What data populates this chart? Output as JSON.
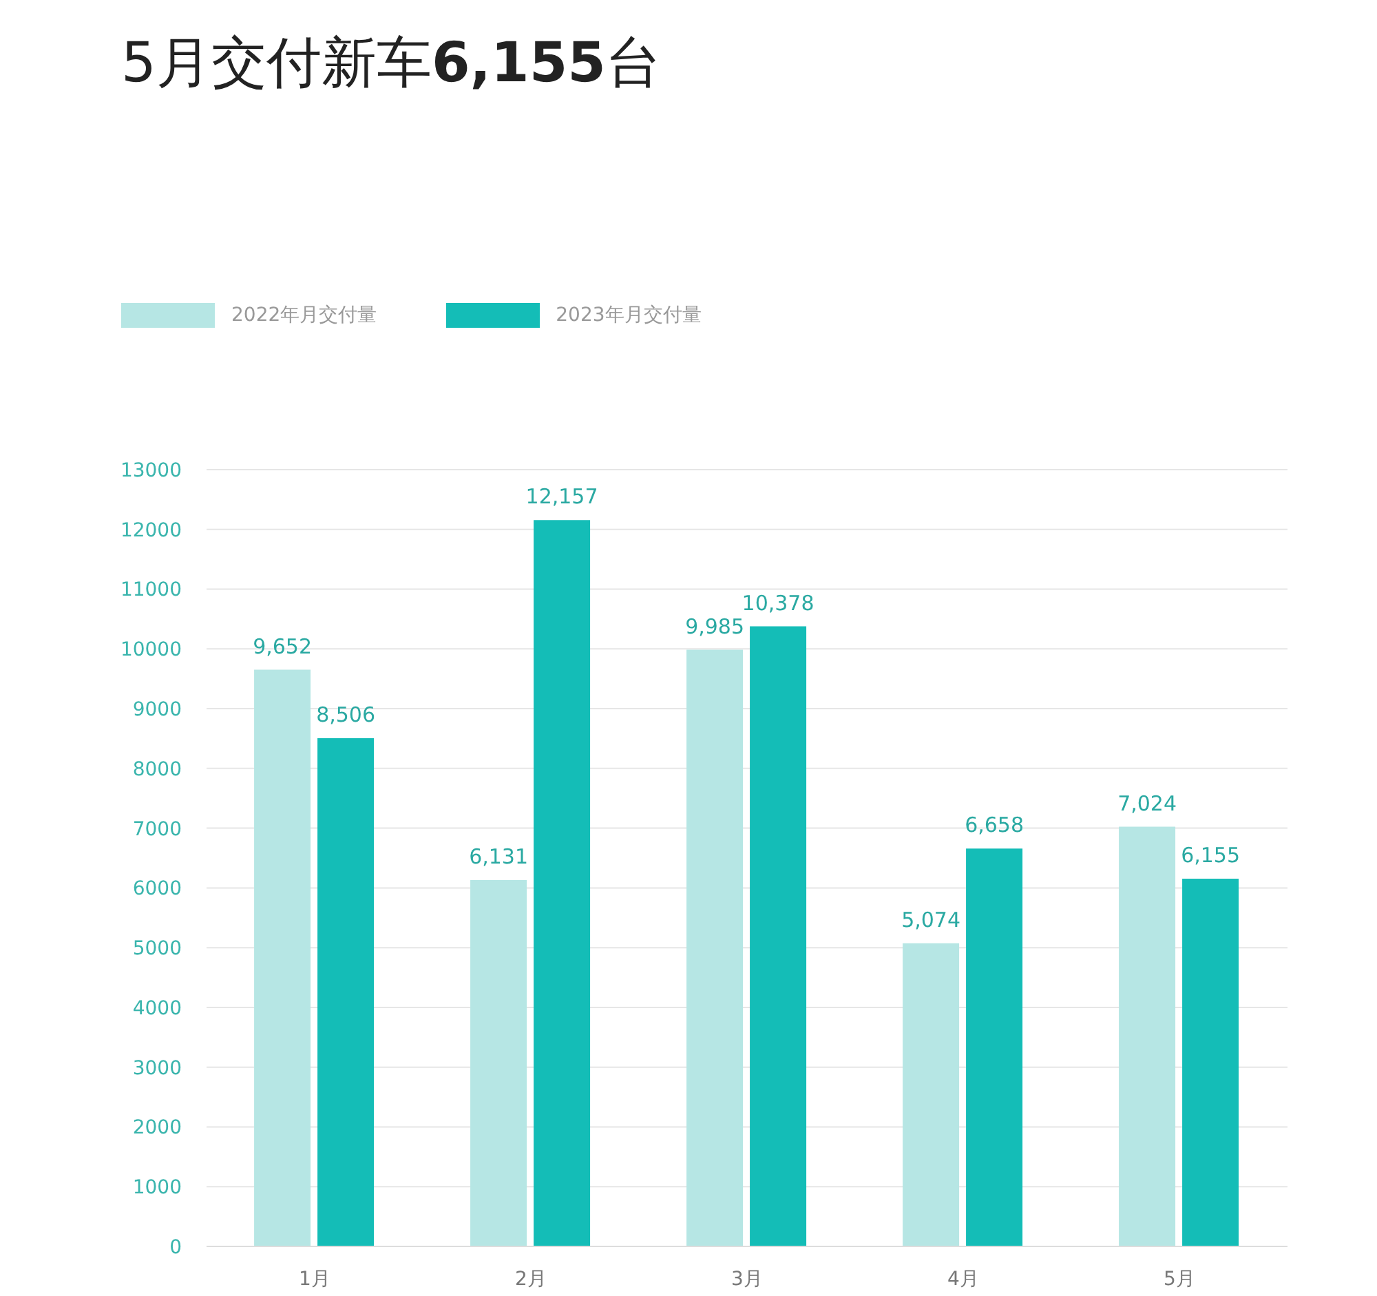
{
  "chart_data": {
    "type": "bar",
    "title": "5月交付新车6,155台",
    "categories": [
      "1月",
      "2月",
      "3月",
      "4月",
      "5月"
    ],
    "series": [
      {
        "name": "2022年月交付量",
        "color": "#b6e6e4",
        "values": [
          9652,
          6131,
          9985,
          5074,
          7024
        ],
        "value_labels": [
          "9,652",
          "6,131",
          "9,985",
          "5,074",
          "7,024"
        ]
      },
      {
        "name": "2023年月交付量",
        "color": "#14bdb7",
        "values": [
          8506,
          12157,
          10378,
          6658,
          6155
        ],
        "value_labels": [
          "8,506",
          "12,157",
          "10,378",
          "6,658",
          "6,155"
        ]
      }
    ],
    "ylim": [
      0,
      13000
    ],
    "yticks": [
      0,
      1000,
      2000,
      3000,
      4000,
      5000,
      6000,
      7000,
      8000,
      9000,
      10000,
      11000,
      12000,
      13000
    ],
    "grid": "y",
    "legend": "top left"
  }
}
